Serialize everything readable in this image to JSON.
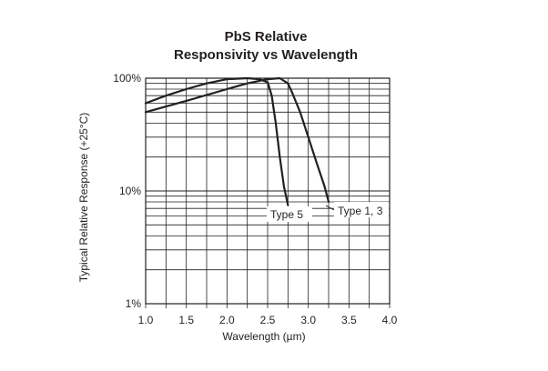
{
  "chart_data": {
    "type": "line",
    "title_lines": [
      "PbS Relative",
      "Responsivity vs Wavelength"
    ],
    "xlabel": "Wavelength (µm)",
    "ylabel": "Typical Relative Response (+25°C)",
    "xlim": [
      1.0,
      4.0
    ],
    "ylim": [
      1,
      100
    ],
    "yscale": "log",
    "grid": true,
    "x_ticks": [
      1.0,
      1.5,
      2.0,
      2.5,
      3.0,
      3.5,
      4.0
    ],
    "x_tick_labels": [
      "1.0",
      "1.5",
      "2.0",
      "2.5",
      "3.0",
      "3.5",
      "4.0"
    ],
    "y_ticks": [
      1,
      10,
      100
    ],
    "y_tick_labels": [
      "1%",
      "10%",
      "100%"
    ],
    "series": [
      {
        "name": "Type 5",
        "x": [
          1.0,
          1.25,
          1.5,
          1.75,
          2.0,
          2.25,
          2.4,
          2.5,
          2.55,
          2.6,
          2.65,
          2.7,
          2.75
        ],
        "y": [
          60,
          70,
          80,
          90,
          98,
          100,
          98,
          92,
          70,
          40,
          20,
          11,
          7.5
        ]
      },
      {
        "name": "Type 1, 3",
        "x": [
          1.0,
          1.5,
          2.0,
          2.25,
          2.5,
          2.65,
          2.75,
          2.8,
          2.9,
          3.0,
          3.1,
          3.2,
          3.25
        ],
        "y": [
          50,
          63,
          80,
          90,
          98,
          100,
          90,
          75,
          50,
          30,
          18,
          11,
          8
        ]
      }
    ]
  }
}
